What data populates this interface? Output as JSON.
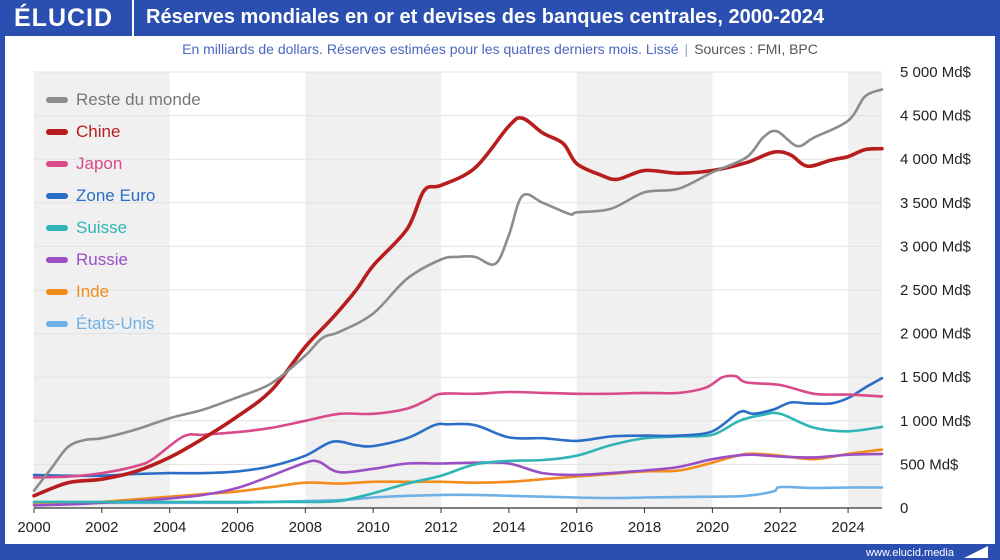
{
  "header": {
    "logo": "ÉLUCID",
    "title": "Réserves mondiales en or et devises des banques centrales, 2000-2024",
    "subtitle_main": "En milliards de dollars. Réserves estimées pour les quatres derniers mois. Lissé",
    "subtitle_sep": "|",
    "subtitle_source": "Sources : FMI, BPC"
  },
  "footer": {
    "website": "www.elucid.media"
  },
  "colors": {
    "brand": "#2a4fb0",
    "shade": "#f0f0f0",
    "grid": "#e2e2e2"
  },
  "chart_data": {
    "type": "line",
    "title": "Réserves mondiales en or et devises des banques centrales, 2000-2024",
    "xlabel": "",
    "ylabel": "Md$",
    "xlim": [
      2000,
      2025
    ],
    "ylim": [
      0,
      5000
    ],
    "x_ticks": [
      2000,
      2002,
      2004,
      2006,
      2008,
      2010,
      2012,
      2014,
      2016,
      2018,
      2020,
      2022,
      2024
    ],
    "x_tick_labels": [
      "2000",
      "2002",
      "2004",
      "2006",
      "2008",
      "2010",
      "2012",
      "2014",
      "2016",
      "2018",
      "2020",
      "2022",
      "2024"
    ],
    "y_ticks": [
      0,
      500,
      1000,
      1500,
      2000,
      2500,
      3000,
      3500,
      4000,
      4500,
      5000
    ],
    "y_tick_labels": [
      "0",
      "500 Md$",
      "1 000 Md$",
      "1 500 Md$",
      "2 000 Md$",
      "2 500 Md$",
      "3 000 Md$",
      "3 500 Md$",
      "4 000 Md$",
      "4 500 Md$",
      "5 000 Md$"
    ],
    "grid": true,
    "shaded_periods": [
      [
        2000,
        2004
      ],
      [
        2008,
        2012
      ],
      [
        2016,
        2020
      ],
      [
        2024,
        2025
      ]
    ],
    "legend_position": "top-left",
    "series": [
      {
        "name": "Reste du monde",
        "color": "#8c8c8c",
        "x": [
          2000,
          2000.5,
          2001,
          2001.5,
          2002,
          2003,
          2004,
          2005,
          2006,
          2007,
          2008,
          2008.5,
          2009,
          2010,
          2011,
          2012,
          2012.5,
          2013,
          2013.6,
          2014,
          2014.4,
          2015,
          2015.8,
          2016,
          2017,
          2018,
          2019,
          2020,
          2021,
          2021.5,
          2021.9,
          2022.5,
          2023,
          2024,
          2024.5,
          2025
        ],
        "values": [
          200,
          450,
          700,
          780,
          800,
          900,
          1030,
          1130,
          1270,
          1430,
          1750,
          1950,
          2020,
          2230,
          2630,
          2850,
          2880,
          2880,
          2800,
          3130,
          3580,
          3500,
          3370,
          3390,
          3430,
          3620,
          3660,
          3850,
          4020,
          4250,
          4320,
          4150,
          4250,
          4440,
          4720,
          4800
        ]
      },
      {
        "name": "Chine",
        "color": "#b81d1d",
        "x": [
          2000,
          2001,
          2002,
          2003,
          2004,
          2005,
          2006,
          2007,
          2008,
          2008.8,
          2009.5,
          2010,
          2011,
          2011.5,
          2012,
          2013,
          2014,
          2014.4,
          2015,
          2015.6,
          2016,
          2016.7,
          2017.2,
          2018,
          2019,
          2020,
          2021,
          2021.8,
          2022.3,
          2022.8,
          2023.5,
          2024,
          2024.5,
          2025
        ],
        "values": [
          140,
          290,
          330,
          420,
          580,
          800,
          1050,
          1350,
          1850,
          2180,
          2500,
          2780,
          3200,
          3640,
          3700,
          3900,
          4380,
          4470,
          4300,
          4180,
          3950,
          3820,
          3770,
          3870,
          3840,
          3870,
          3960,
          4080,
          4050,
          3920,
          3990,
          4030,
          4110,
          4120
        ]
      },
      {
        "name": "Japon",
        "color": "#d94a8b",
        "x": [
          2000,
          2001,
          2002,
          2003,
          2003.5,
          2004.4,
          2005,
          2006,
          2007,
          2008,
          2009,
          2010,
          2011,
          2011.6,
          2012,
          2013,
          2014,
          2015,
          2016,
          2017,
          2018,
          2019,
          2019.8,
          2020.3,
          2020.7,
          2021,
          2022,
          2023,
          2024,
          2025
        ],
        "values": [
          350,
          360,
          400,
          480,
          560,
          820,
          840,
          870,
          920,
          1000,
          1080,
          1080,
          1140,
          1240,
          1310,
          1310,
          1330,
          1320,
          1310,
          1310,
          1320,
          1320,
          1380,
          1500,
          1510,
          1440,
          1410,
          1310,
          1300,
          1280
        ]
      },
      {
        "name": "Zone Euro",
        "color": "#2a6ec8",
        "x": [
          2000,
          2001,
          2002,
          2003,
          2004,
          2005,
          2006,
          2007,
          2008,
          2008.8,
          2009.5,
          2010,
          2011,
          2011.8,
          2012.2,
          2013,
          2014,
          2015,
          2016,
          2017,
          2018,
          2019,
          2020,
          2020.8,
          2021.2,
          2021.8,
          2022.3,
          2022.8,
          2023.5,
          2024,
          2024.5,
          2025
        ],
        "values": [
          380,
          370,
          370,
          390,
          400,
          400,
          420,
          480,
          600,
          760,
          720,
          710,
          800,
          950,
          960,
          950,
          810,
          800,
          770,
          820,
          830,
          830,
          880,
          1100,
          1080,
          1130,
          1210,
          1200,
          1200,
          1260,
          1380,
          1490
        ]
      },
      {
        "name": "Suisse",
        "color": "#2fb5b5",
        "x": [
          2000,
          2001,
          2002,
          2003,
          2004,
          2005,
          2006,
          2007,
          2008,
          2009,
          2010,
          2011,
          2012,
          2013,
          2014,
          2015,
          2016,
          2017,
          2018,
          2019,
          2020,
          2020.8,
          2021.5,
          2022,
          2023,
          2024,
          2025
        ],
        "values": [
          70,
          70,
          70,
          70,
          70,
          70,
          70,
          70,
          70,
          80,
          170,
          280,
          370,
          500,
          540,
          550,
          600,
          720,
          800,
          820,
          840,
          1000,
          1070,
          1080,
          920,
          880,
          930
        ]
      },
      {
        "name": "Russie",
        "color": "#9b4fc4",
        "x": [
          2000,
          2001,
          2002,
          2003,
          2004,
          2005,
          2006,
          2007,
          2008,
          2008.4,
          2009,
          2010,
          2011,
          2012,
          2013,
          2014,
          2015,
          2016,
          2017,
          2018,
          2019,
          2020,
          2021,
          2022,
          2023,
          2024,
          2025
        ],
        "values": [
          30,
          40,
          60,
          80,
          110,
          150,
          230,
          370,
          520,
          530,
          410,
          450,
          510,
          510,
          520,
          510,
          400,
          380,
          400,
          430,
          470,
          560,
          610,
          590,
          580,
          610,
          620
        ]
      },
      {
        "name": "Inde",
        "color": "#f28c1b",
        "x": [
          2000,
          2001,
          2002,
          2003,
          2004,
          2005,
          2006,
          2007,
          2008,
          2009,
          2010,
          2011,
          2012,
          2013,
          2014,
          2015,
          2016,
          2017,
          2018,
          2019,
          2020,
          2021,
          2022,
          2023,
          2024,
          2025
        ],
        "values": [
          40,
          50,
          70,
          100,
          130,
          160,
          190,
          240,
          290,
          280,
          300,
          300,
          300,
          290,
          300,
          330,
          360,
          390,
          420,
          430,
          520,
          620,
          600,
          560,
          620,
          670
        ]
      },
      {
        "name": "États-Unis",
        "color": "#6fb0e5",
        "x": [
          2000,
          2001,
          2002,
          2003,
          2004,
          2005,
          2006,
          2007,
          2008,
          2009,
          2010,
          2011,
          2012,
          2013,
          2014,
          2015,
          2016,
          2017,
          2018,
          2019,
          2020,
          2021,
          2021.8,
          2022,
          2023,
          2024,
          2025
        ],
        "values": [
          60,
          60,
          60,
          60,
          60,
          60,
          60,
          70,
          80,
          90,
          120,
          140,
          150,
          150,
          140,
          130,
          120,
          115,
          120,
          125,
          130,
          140,
          190,
          240,
          230,
          235,
          235
        ]
      }
    ]
  }
}
